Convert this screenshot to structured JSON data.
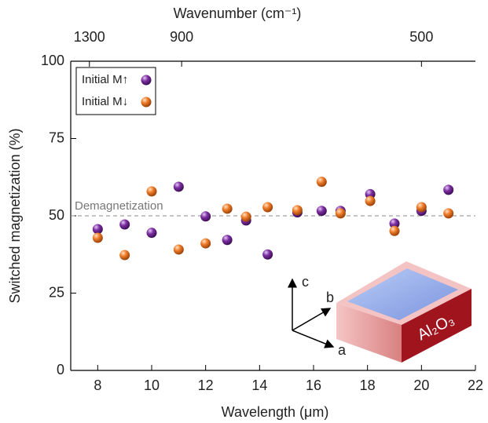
{
  "chart_data": {
    "type": "scatter",
    "xlabel": "Wavelength (μm)",
    "ylabel": "Switched magnetization (%)",
    "x2label": "Wavenumber (cm⁻¹)",
    "xlim": [
      7,
      22
    ],
    "xticks": [
      8,
      10,
      12,
      14,
      16,
      18,
      20,
      22
    ],
    "ylim": [
      0,
      100
    ],
    "yticks": [
      0,
      25,
      50,
      75,
      100
    ],
    "x2lim": [
      1428.57,
      454.55
    ],
    "x2ticks": [
      1300,
      900,
      500
    ],
    "hline": {
      "value": 50,
      "label": "Demagnetization"
    },
    "legend": "upper left",
    "series": [
      {
        "name": "Initial M↑",
        "color": "#7d2fa3",
        "x": [
          8,
          9,
          10,
          11,
          12,
          12.8,
          13.5,
          14.3,
          15.4,
          16.3,
          17,
          18.1,
          19,
          20,
          21
        ],
        "values": [
          45.7,
          47.2,
          44.5,
          59.4,
          49.8,
          42.2,
          48.5,
          37.5,
          51.1,
          51.6,
          51.6,
          57.0,
          47.5,
          51.6,
          58.4
        ]
      },
      {
        "name": "Initial M↓",
        "color": "#ef7d2a",
        "x": [
          8,
          9,
          10,
          11,
          12,
          12.8,
          13.5,
          14.3,
          15.4,
          16.3,
          17,
          18.1,
          19,
          20,
          21
        ],
        "values": [
          42.9,
          37.3,
          57.9,
          39.1,
          41.1,
          52.3,
          49.7,
          52.8,
          51.8,
          61.0,
          50.8,
          54.8,
          45.1,
          52.8,
          50.8
        ]
      }
    ],
    "inset": {
      "axis_labels": [
        "c",
        "b",
        "a"
      ],
      "crystal_label": "Al₂O₃"
    }
  }
}
